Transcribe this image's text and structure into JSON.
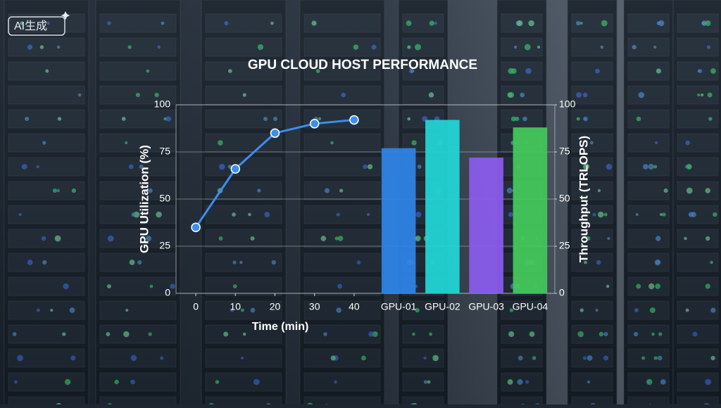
{
  "badge": "AI生成",
  "chart_data": [
    {
      "type": "line",
      "title": "GPU CLOUD HOST PERFORMANCE",
      "x": [
        0,
        10,
        20,
        30,
        40
      ],
      "xlabel": "Time (min)",
      "ylabel": "GPU Utilization (%)",
      "xlim": [
        -5,
        45
      ],
      "xticks": [
        0,
        10,
        20,
        30,
        40
      ],
      "ylim": [
        0,
        100
      ],
      "yticks": [
        0,
        25,
        50,
        75,
        100
      ],
      "grid": true,
      "series": [
        {
          "color": "#3b8ff0",
          "values": [
            35,
            66,
            85,
            90,
            92
          ]
        }
      ]
    },
    {
      "type": "bar",
      "categories": [
        "GPU-01",
        "GPU-02",
        "GPU-03",
        "GPU-04"
      ],
      "values": [
        77,
        92,
        72,
        88
      ],
      "colors": [
        "#2f86e8",
        "#22d8d8",
        "#8c5cf0",
        "#45cc5c"
      ],
      "ylabel": "Throughput (TRLOPS)",
      "ylim": [
        0,
        100
      ],
      "yticks": [
        0,
        25,
        50,
        75,
        100
      ]
    }
  ]
}
